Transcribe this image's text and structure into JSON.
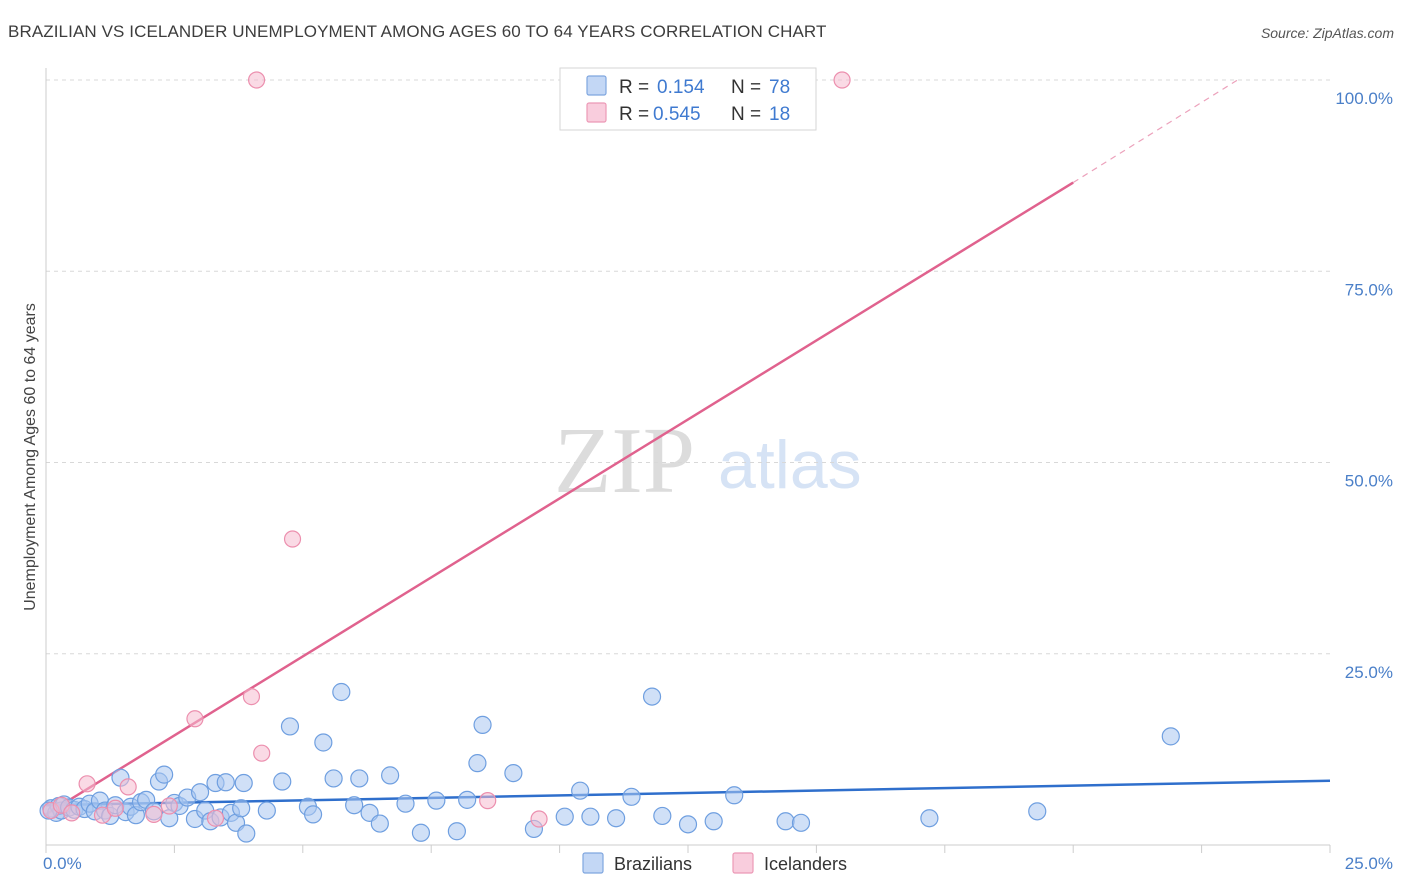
{
  "header": {
    "title": "BRAZILIAN VS ICELANDER UNEMPLOYMENT AMONG AGES 60 TO 64 YEARS CORRELATION CHART",
    "source": "Source: ZipAtlas.com"
  },
  "watermark": {
    "zip": "ZIP",
    "atlas": "atlas"
  },
  "colors": {
    "blue": "#6f9fe0",
    "blue_fill": "#a9c7f1",
    "blue_line": "#2f6fcc",
    "pink": "#ec8fae",
    "pink_fill": "#f6bcd0",
    "pink_line": "#e0628e",
    "tick": "#4a7fc8",
    "grid": "#d8d8d8"
  },
  "legend": {
    "rows": [
      {
        "r_label": "R =",
        "r_value": "0.154",
        "n_label": "N =",
        "n_value": "78"
      },
      {
        "r_label": "R =",
        "r_value": "0.545",
        "n_label": "N =",
        "n_value": "18"
      }
    ]
  },
  "chart_data": {
    "type": "scatter",
    "title": "BRAZILIAN VS ICELANDER UNEMPLOYMENT AMONG AGES 60 TO 64 YEARS CORRELATION CHART",
    "xlabel": "",
    "ylabel": "Unemployment Among Ages 60 to 64 years",
    "xlim": [
      0,
      25
    ],
    "ylim": [
      0,
      100
    ],
    "x_tick_labels": [
      "0.0%",
      "25.0%"
    ],
    "y_ticks": [
      25,
      50,
      75,
      100
    ],
    "y_tick_labels": [
      "25.0%",
      "50.0%",
      "75.0%",
      "100.0%"
    ],
    "legend_position": "top-center",
    "series": [
      {
        "name": "Brazilians",
        "points": [
          [
            0.1,
            4.8
          ],
          [
            0.2,
            4.2
          ],
          [
            0.25,
            5.1
          ],
          [
            0.3,
            4.5
          ],
          [
            0.35,
            5.3
          ],
          [
            0.45,
            4.9
          ],
          [
            0.55,
            4.6
          ],
          [
            0.65,
            5.0
          ],
          [
            0.75,
            4.7
          ],
          [
            0.85,
            5.4
          ],
          [
            0.95,
            4.4
          ],
          [
            1.05,
            5.8
          ],
          [
            1.15,
            4.5
          ],
          [
            1.25,
            3.8
          ],
          [
            1.35,
            5.2
          ],
          [
            1.45,
            8.8
          ],
          [
            1.55,
            4.3
          ],
          [
            1.65,
            5.0
          ],
          [
            1.75,
            3.9
          ],
          [
            1.85,
            5.6
          ],
          [
            1.95,
            5.9
          ],
          [
            2.1,
            4.4
          ],
          [
            2.2,
            8.3
          ],
          [
            2.3,
            9.2
          ],
          [
            2.4,
            3.5
          ],
          [
            2.5,
            5.5
          ],
          [
            2.6,
            5.1
          ],
          [
            2.75,
            6.2
          ],
          [
            2.9,
            3.4
          ],
          [
            3.0,
            6.9
          ],
          [
            3.1,
            4.5
          ],
          [
            3.2,
            3.1
          ],
          [
            3.3,
            8.1
          ],
          [
            3.4,
            3.6
          ],
          [
            3.5,
            8.2
          ],
          [
            3.6,
            4.2
          ],
          [
            3.7,
            2.9
          ],
          [
            3.8,
            4.8
          ],
          [
            3.85,
            8.1
          ],
          [
            3.9,
            1.5
          ],
          [
            4.3,
            4.5
          ],
          [
            4.6,
            8.3
          ],
          [
            4.75,
            15.5
          ],
          [
            5.1,
            5.0
          ],
          [
            5.2,
            4.0
          ],
          [
            5.4,
            13.4
          ],
          [
            5.6,
            8.7
          ],
          [
            5.75,
            20.0
          ],
          [
            6.0,
            5.2
          ],
          [
            6.1,
            8.7
          ],
          [
            6.3,
            4.2
          ],
          [
            6.5,
            2.8
          ],
          [
            6.7,
            9.1
          ],
          [
            7.0,
            5.4
          ],
          [
            7.3,
            1.6
          ],
          [
            7.6,
            5.8
          ],
          [
            8.0,
            1.8
          ],
          [
            8.2,
            5.9
          ],
          [
            8.4,
            10.7
          ],
          [
            8.5,
            15.7
          ],
          [
            9.1,
            9.4
          ],
          [
            9.5,
            2.1
          ],
          [
            10.1,
            3.7
          ],
          [
            10.4,
            7.1
          ],
          [
            10.6,
            3.7
          ],
          [
            11.1,
            3.5
          ],
          [
            11.4,
            6.3
          ],
          [
            11.8,
            19.4
          ],
          [
            12.0,
            3.8
          ],
          [
            12.5,
            2.7
          ],
          [
            13.0,
            3.1
          ],
          [
            13.4,
            6.5
          ],
          [
            14.4,
            3.1
          ],
          [
            14.7,
            2.9
          ],
          [
            17.2,
            3.5
          ],
          [
            19.3,
            4.4
          ],
          [
            21.9,
            14.2
          ],
          [
            0.05,
            4.5
          ]
        ],
        "trend": {
          "x": [
            0,
            25
          ],
          "y": [
            5.2,
            8.4
          ]
        }
      },
      {
        "name": "Icelanders",
        "points": [
          [
            0.1,
            4.5
          ],
          [
            0.3,
            5.2
          ],
          [
            0.5,
            4.2
          ],
          [
            0.8,
            8.0
          ],
          [
            1.1,
            3.9
          ],
          [
            1.35,
            4.8
          ],
          [
            1.6,
            7.6
          ],
          [
            2.1,
            4.0
          ],
          [
            2.4,
            5.1
          ],
          [
            2.9,
            16.5
          ],
          [
            3.3,
            3.5
          ],
          [
            4.0,
            19.4
          ],
          [
            4.2,
            12.0
          ],
          [
            4.8,
            40.0
          ],
          [
            8.6,
            5.8
          ],
          [
            9.6,
            3.4
          ],
          [
            4.1,
            100.0
          ],
          [
            15.5,
            100.0
          ]
        ],
        "trend": {
          "x": [
            0,
            20.0
          ],
          "y": [
            4.0,
            86.6
          ]
        },
        "trend_extension": {
          "x": [
            20.0,
            23.2
          ],
          "y": [
            86.6,
            100.0
          ]
        }
      }
    ]
  }
}
